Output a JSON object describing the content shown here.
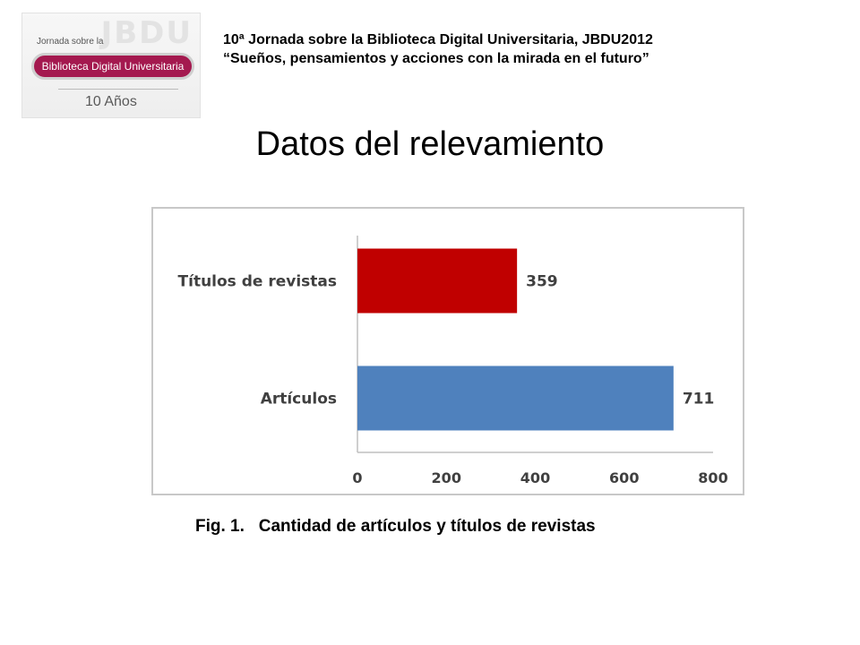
{
  "logo": {
    "watermark": "JBDU",
    "top_text": "Jornada sobre la",
    "pill_text": "Biblioteca Digital Universitaria",
    "years_text": "10 Años"
  },
  "header": {
    "line1": "10ª Jornada sobre la Biblioteca Digital Universitaria, JBDU2012",
    "line2": "“Sueños, pensamientos y acciones con la mirada en el futuro”"
  },
  "title": "Datos del relevamiento",
  "caption": "Fig. 1.   Cantidad de artículos y títulos de revistas",
  "chart_data": {
    "type": "bar",
    "orientation": "horizontal",
    "categories": [
      "Títulos de revistas",
      "Artículos"
    ],
    "values": [
      359,
      711
    ],
    "colors": [
      "#c00000",
      "#4f81bd"
    ],
    "data_labels": [
      "359",
      "711"
    ],
    "xlim": [
      0,
      800
    ],
    "xticks": [
      0,
      200,
      400,
      600,
      800
    ],
    "grid": false
  }
}
